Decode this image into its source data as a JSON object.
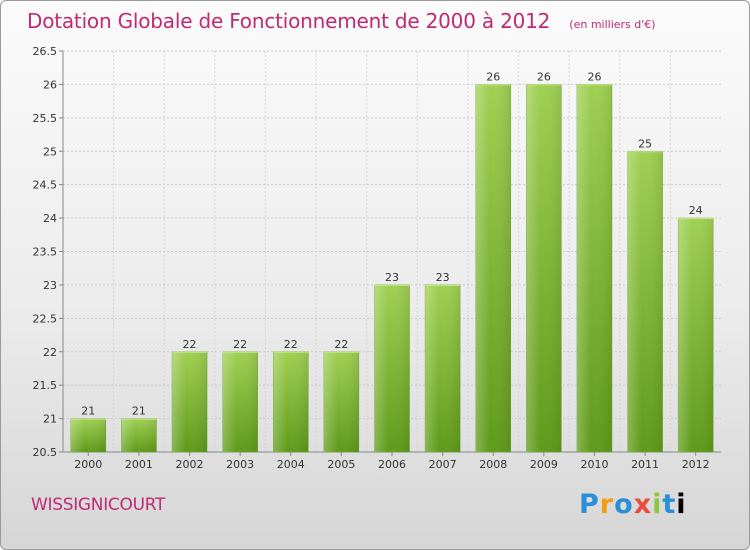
{
  "chart_data": {
    "type": "bar",
    "title": "Dotation Globale de Fonctionnement de 2000 à 2012",
    "subtitle": "(en milliers d'€)",
    "categories": [
      "2000",
      "2001",
      "2002",
      "2003",
      "2004",
      "2005",
      "2006",
      "2007",
      "2008",
      "2009",
      "2010",
      "2011",
      "2012"
    ],
    "values": [
      21,
      21,
      22,
      22,
      22,
      22,
      23,
      23,
      26,
      26,
      26,
      25,
      24
    ],
    "data_labels": [
      "21",
      "21",
      "22",
      "22",
      "22",
      "22",
      "23",
      "23",
      "26",
      "26",
      "26",
      "25",
      "24"
    ],
    "ylim": [
      20.5,
      26.5
    ],
    "yticks": [
      20.5,
      21,
      21.5,
      22,
      22.5,
      23,
      23.5,
      24,
      24.5,
      25,
      25.5,
      26,
      26.5
    ],
    "ytick_labels": [
      "20.5",
      "21",
      "21.5",
      "22",
      "22.5",
      "23",
      "23.5",
      "24",
      "24.5",
      "25",
      "25.5",
      "26",
      "26.5"
    ],
    "grid": true,
    "bar_color": "#7ab834",
    "xlabel": "",
    "ylabel": ""
  },
  "footer": {
    "commune": "WISSIGNICOURT",
    "logo_letters": [
      "P",
      "r",
      "o",
      "x",
      "i",
      "t",
      "i"
    ]
  }
}
